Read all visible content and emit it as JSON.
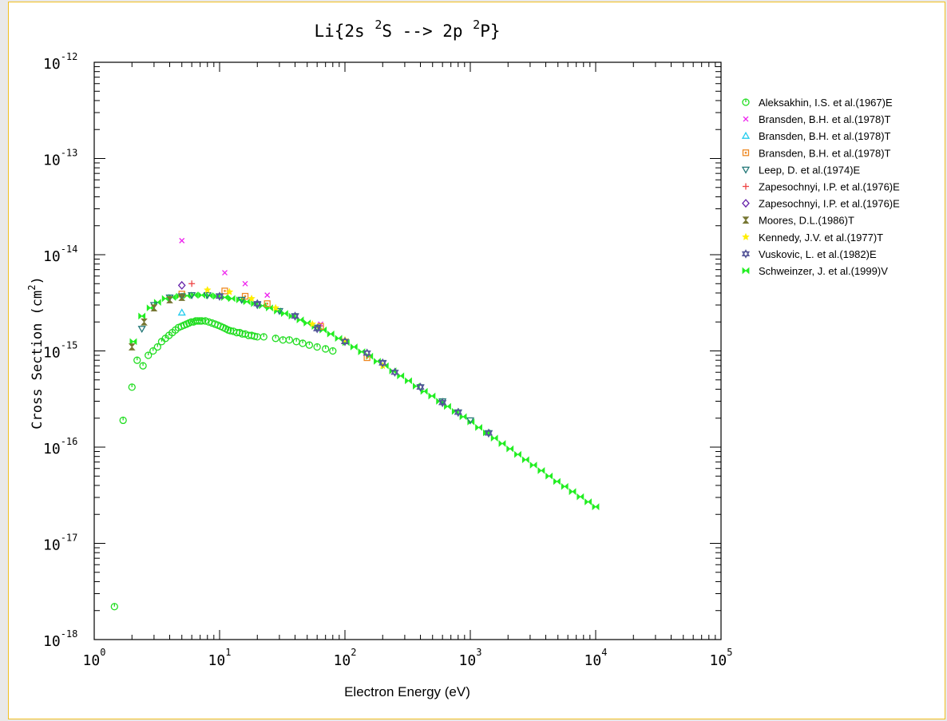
{
  "chart_data": {
    "type": "scatter",
    "title": {
      "prefix": "Li{2s ",
      "sup1": "2",
      "mid": "S --> 2p ",
      "sup2": "2",
      "suffix": "P}"
    },
    "xlabel": "Electron Energy (eV)",
    "ylabel": {
      "text": "Cross Section (cm",
      "sup": "2",
      "close": ")"
    },
    "x_scale": "log",
    "y_scale": "log",
    "xlim": [
      1,
      100000
    ],
    "ylim": [
      1e-18,
      1e-12
    ],
    "x_ticks": [
      {
        "base": "10",
        "exp": "0"
      },
      {
        "base": "10",
        "exp": "1"
      },
      {
        "base": "10",
        "exp": "2"
      },
      {
        "base": "10",
        "exp": "3"
      },
      {
        "base": "10",
        "exp": "4"
      },
      {
        "base": "10",
        "exp": "5"
      }
    ],
    "y_ticks": [
      {
        "base": "10",
        "exp": "-18"
      },
      {
        "base": "10",
        "exp": "-17"
      },
      {
        "base": "10",
        "exp": "-16"
      },
      {
        "base": "10",
        "exp": "-15"
      },
      {
        "base": "10",
        "exp": "-14"
      },
      {
        "base": "10",
        "exp": "-13"
      },
      {
        "base": "10",
        "exp": "-12"
      }
    ],
    "grid": false,
    "legend_position": "right",
    "series": [
      {
        "name": "Aleksakhin, I.S. et al.(1967)E",
        "marker": "circle",
        "color": "#22dd22",
        "x": [
          1.45,
          1.7,
          2.0,
          2.2,
          2.45,
          2.7,
          2.95,
          3.2,
          3.45,
          3.7,
          3.95,
          4.2,
          4.45,
          4.7,
          4.95,
          5.2,
          5.45,
          5.7,
          5.95,
          6.2,
          6.45,
          6.7,
          6.95,
          7.2,
          7.7,
          8.2,
          8.7,
          9.2,
          9.7,
          10.2,
          10.7,
          11.2,
          11.7,
          12.2,
          12.9,
          13.7,
          14.5,
          15.2,
          16.0,
          17.0,
          18.0,
          19.0,
          20.0,
          22.5,
          28.0,
          32.0,
          36.0,
          41.0,
          46.0,
          52.0,
          60.0,
          70.0,
          80.0
        ],
        "y": [
          2.2e-18,
          1.9e-16,
          4.2e-16,
          8e-16,
          7e-16,
          9e-16,
          1e-15,
          1.1e-15,
          1.25e-15,
          1.35e-15,
          1.45e-15,
          1.55e-15,
          1.65e-15,
          1.75e-15,
          1.8e-15,
          1.85e-15,
          1.9e-15,
          1.95e-15,
          2e-15,
          2e-15,
          2.05e-15,
          2.05e-15,
          2.05e-15,
          2.05e-15,
          2.05e-15,
          2e-15,
          1.95e-15,
          1.9e-15,
          1.85e-15,
          1.8e-15,
          1.75e-15,
          1.7e-15,
          1.65e-15,
          1.62e-15,
          1.6e-15,
          1.55e-15,
          1.55e-15,
          1.5e-15,
          1.5e-15,
          1.45e-15,
          1.45e-15,
          1.42e-15,
          1.4e-15,
          1.4e-15,
          1.35e-15,
          1.3e-15,
          1.3e-15,
          1.25e-15,
          1.2e-15,
          1.15e-15,
          1.1e-15,
          1.05e-15,
          1e-15
        ]
      },
      {
        "name": "Bransden, B.H. et al.(1978)T",
        "marker": "x",
        "color": "#ee22ee",
        "x": [
          5,
          11,
          16,
          24,
          64
        ],
        "y": [
          1.4e-14,
          6.5e-15,
          5e-15,
          3.8e-15,
          1.9e-15
        ]
      },
      {
        "name": "Bransden, B.H. et al.(1978)T",
        "marker": "triangle-up",
        "color": "#22ccee",
        "x": [
          5
        ],
        "y": [
          2.5e-15
        ]
      },
      {
        "name": "Bransden, B.H. et al.(1978)T",
        "marker": "square",
        "color": "#ee8822",
        "x": [
          5,
          11,
          16,
          24,
          64,
          150
        ],
        "y": [
          3.9e-15,
          4.2e-15,
          3.7e-15,
          3.1e-15,
          1.8e-15,
          8.5e-16
        ]
      },
      {
        "name": "Leep, D. et al.(1974)E",
        "marker": "triangle-down",
        "color": "#227777",
        "x": [
          2.4,
          3,
          4,
          5,
          6,
          8,
          10,
          15,
          20,
          30,
          40,
          60,
          100,
          200,
          400,
          600,
          800,
          1000,
          1400
        ],
        "y": [
          1.7e-15,
          3e-15,
          3.6e-15,
          3.7e-15,
          3.8e-15,
          3.8e-15,
          3.7e-15,
          3.4e-15,
          3e-15,
          2.6e-15,
          2.3e-15,
          1.75e-15,
          1.25e-15,
          7.5e-16,
          4.2e-16,
          3e-16,
          2.3e-16,
          1.9e-16,
          1.4e-16
        ]
      },
      {
        "name": "Zapesochnyi, I.P. et al.(1976)E",
        "marker": "plus",
        "color": "#ee4444",
        "x": [
          6
        ],
        "y": [
          5e-15
        ]
      },
      {
        "name": "Zapesochnyi, I.P. et al.(1976)E",
        "marker": "diamond",
        "color": "#6622aa",
        "x": [
          5
        ],
        "y": [
          4.8e-15
        ]
      },
      {
        "name": "Moores, D.L.(1986)T",
        "marker": "hourglass",
        "color": "#777733",
        "x": [
          2,
          2.5,
          3,
          4,
          5
        ],
        "y": [
          1.1e-15,
          2e-15,
          2.8e-15,
          3.4e-15,
          3.6e-15
        ]
      },
      {
        "name": "Kennedy, J.V. et al.(1977)T",
        "marker": "star",
        "color": "#ffee00",
        "x": [
          8,
          12,
          18,
          28,
          55,
          100,
          200
        ],
        "y": [
          4.3e-15,
          4.1e-15,
          3.5e-15,
          2.8e-15,
          1.9e-15,
          1.3e-15,
          7e-16
        ]
      },
      {
        "name": "Vuskovic, L. et al.(1982)E",
        "marker": "star-of-david",
        "color": "#555599",
        "x": [
          10,
          20,
          40,
          60,
          100,
          150,
          200,
          250,
          400,
          600,
          800,
          1400
        ],
        "y": [
          3.7e-15,
          3.1e-15,
          2.3e-15,
          1.7e-15,
          1.25e-15,
          9.5e-16,
          7.5e-16,
          6e-16,
          4.2e-16,
          2.9e-16,
          2.3e-16,
          1.4e-16
        ]
      },
      {
        "name": "Schweinzer, J. et al.(1999)V",
        "marker": "bowtie",
        "color": "#22ee22",
        "x": [
          2.05,
          2.4,
          2.8,
          3.2,
          3.7,
          4.2,
          4.8,
          5.5,
          6.3,
          7.2,
          8.3,
          9.5,
          11,
          12.5,
          14.5,
          16.5,
          19,
          22,
          25,
          29,
          33,
          38,
          44,
          50,
          58,
          67,
          77,
          89,
          102,
          118,
          136,
          157,
          181,
          209,
          241,
          278,
          321,
          371,
          428,
          494,
          570,
          658,
          760,
          877,
          1012,
          1168,
          1349,
          1557,
          1797,
          2074,
          2394,
          2764,
          3190,
          3683,
          4251,
          4907,
          5664,
          6538,
          7547,
          8711,
          10000
        ],
        "y": [
          1.25e-15,
          2.3e-15,
          2.8e-15,
          3.2e-15,
          3.5e-15,
          3.6e-15,
          3.7e-15,
          3.75e-15,
          3.8e-15,
          3.8e-15,
          3.75e-15,
          3.7e-15,
          3.6e-15,
          3.5e-15,
          3.4e-15,
          3.25e-15,
          3.1e-15,
          2.95e-15,
          2.8e-15,
          2.6e-15,
          2.45e-15,
          2.3e-15,
          2.1e-15,
          1.95e-15,
          1.8e-15,
          1.65e-15,
          1.5e-15,
          1.35e-15,
          1.22e-15,
          1.1e-15,
          9.8e-16,
          8.8e-16,
          7.8e-16,
          7e-16,
          6.2e-16,
          5.5e-16,
          4.9e-16,
          4.3e-16,
          3.8e-16,
          3.4e-16,
          3e-16,
          2.65e-16,
          2.35e-16,
          2.07e-16,
          1.83e-16,
          1.6e-16,
          1.41e-16,
          1.24e-16,
          1.09e-16,
          9.6e-17,
          8.4e-17,
          7.4e-17,
          6.5e-17,
          5.7e-17,
          5e-17,
          4.4e-17,
          3.9e-17,
          3.45e-17,
          3.05e-17,
          2.7e-17,
          2.4e-17
        ]
      }
    ]
  }
}
